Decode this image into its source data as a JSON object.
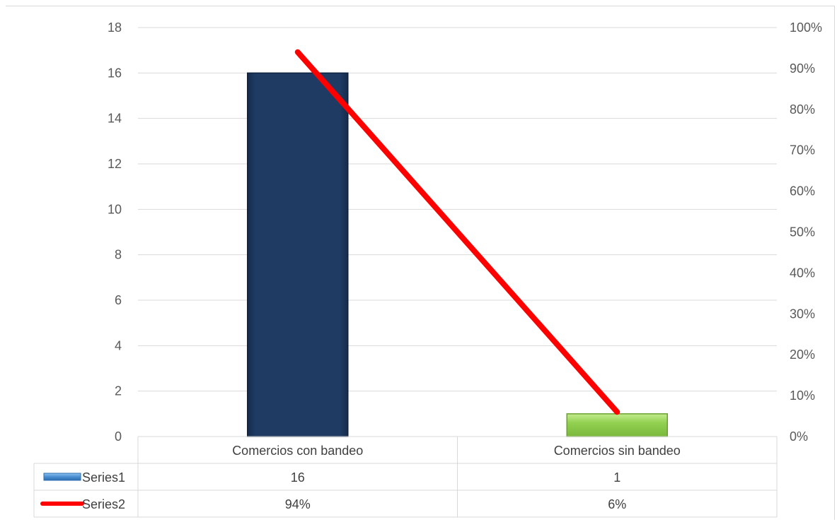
{
  "chart_data": {
    "type": "bar",
    "categories": [
      "Comercios con bandeo",
      "Comercios sin bandeo"
    ],
    "series": [
      {
        "name": "Series1",
        "kind": "bar",
        "axis": "left",
        "values": [
          16,
          1
        ],
        "labels": [
          "16",
          "1"
        ],
        "colors": [
          "#1f3b64",
          "#92d050"
        ]
      },
      {
        "name": "Series2",
        "kind": "line",
        "axis": "right",
        "values": [
          0.94,
          0.06
        ],
        "labels": [
          "94%",
          "6%"
        ],
        "color": "#ff0000"
      }
    ],
    "y_left": {
      "min": 0,
      "max": 18,
      "step": 2,
      "ticks": [
        "0",
        "2",
        "4",
        "6",
        "8",
        "10",
        "12",
        "14",
        "16",
        "18"
      ]
    },
    "y_right": {
      "min": 0,
      "max": 1,
      "step": 0.1,
      "ticks": [
        "0%",
        "10%",
        "20%",
        "30%",
        "40%",
        "50%",
        "60%",
        "70%",
        "80%",
        "90%",
        "100%"
      ]
    },
    "grid": true,
    "legend": "data-table"
  }
}
